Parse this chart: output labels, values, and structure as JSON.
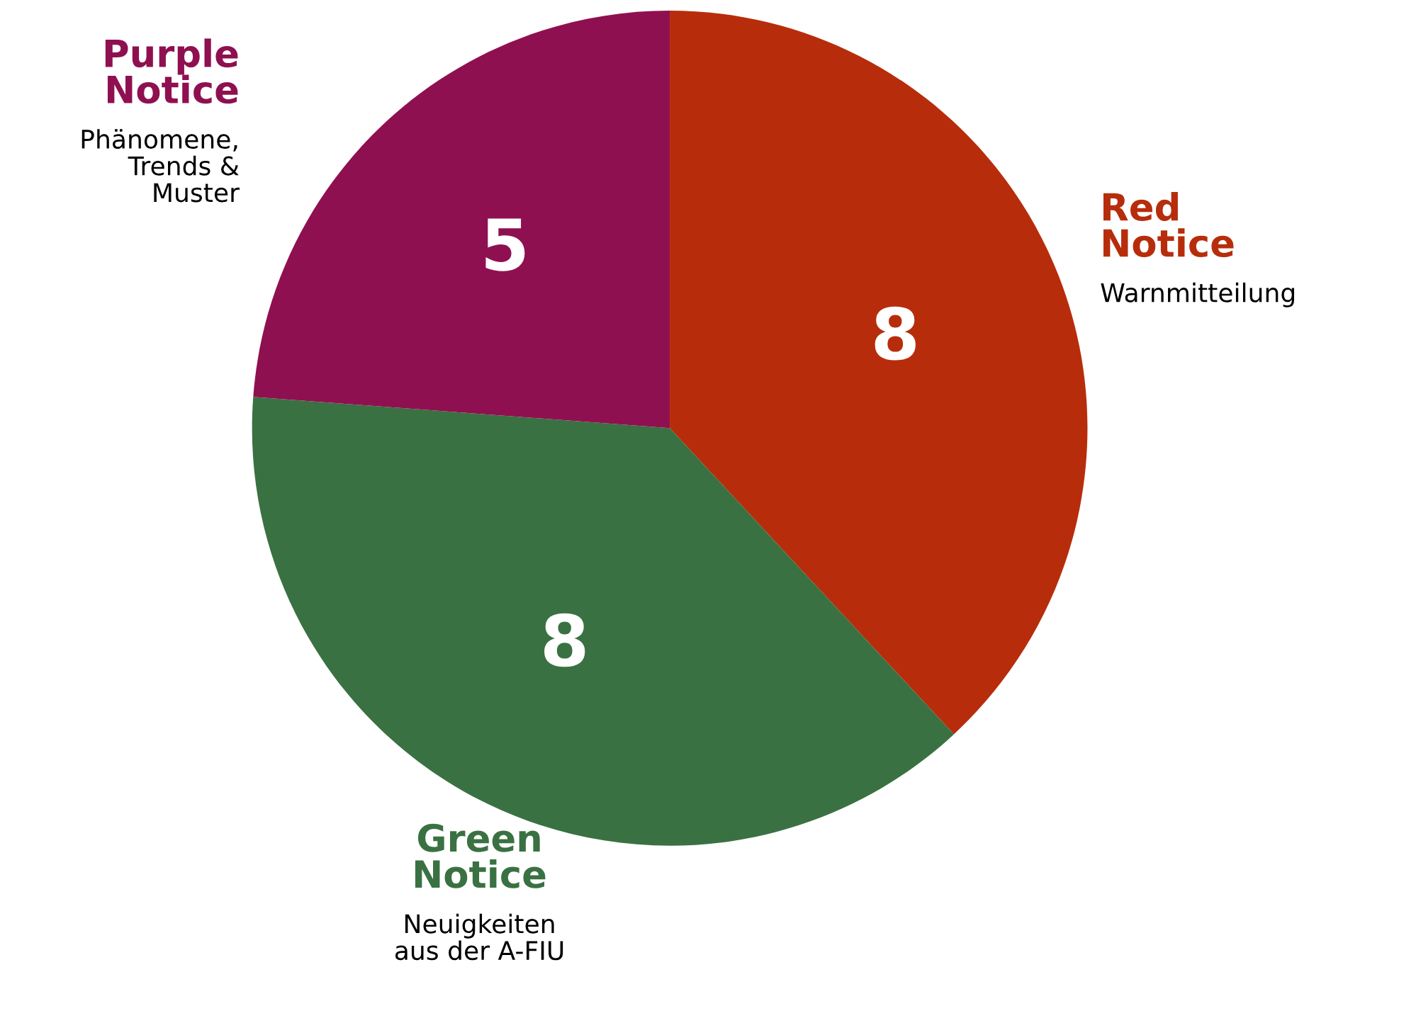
{
  "chart_data": {
    "type": "pie",
    "categories": [
      "Red\nNotice",
      "Green\nNotice",
      "Purple\nNotice"
    ],
    "values": [
      8,
      8,
      5
    ],
    "colors": [
      "#b72d0b",
      "#3a7142",
      "#8f1050"
    ],
    "annotations": [
      "Warnmitteilung",
      "Neuigkeiten\naus der A-FIU",
      "Phänomene,\nTrends &\nMuster"
    ],
    "data_labels": true,
    "legend": false
  }
}
